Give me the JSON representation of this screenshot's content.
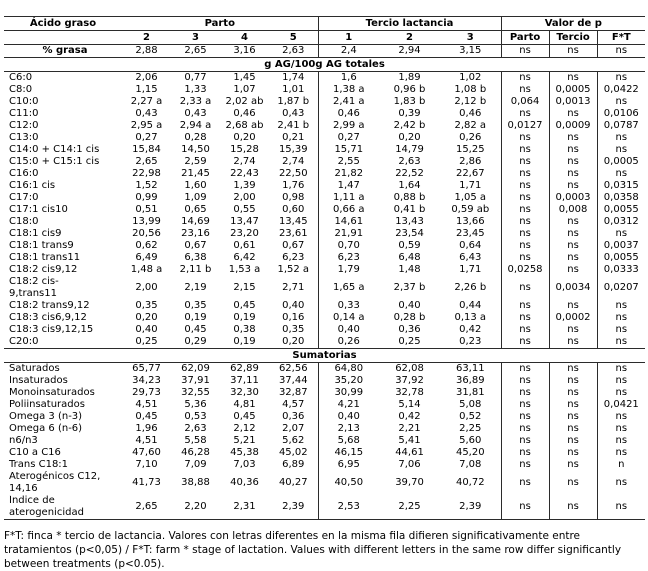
{
  "table": {
    "header": {
      "acid_label": "Ácido graso",
      "groups": [
        {
          "label": "Parto",
          "cols": [
            "2",
            "3",
            "4",
            "5"
          ]
        },
        {
          "label": "Tercio lactancia",
          "cols": [
            "1",
            "2",
            "3"
          ]
        },
        {
          "label": "Valor de p",
          "cols": [
            "Parto",
            "Tercio",
            "F*T"
          ]
        }
      ]
    },
    "rows": [
      {
        "label": "% grasa",
        "values": [
          "2,88",
          "2,65",
          "3,16",
          "2,63",
          "2,4",
          "2,94",
          "3,15",
          "ns",
          "ns",
          "ns"
        ]
      },
      {
        "section": "g AG/100g AG totales"
      },
      {
        "label": "C6:0",
        "values": [
          "2,06",
          "0,77",
          "1,45",
          "1,74",
          "1,6",
          "1,89",
          "1,02",
          "ns",
          "ns",
          "ns"
        ]
      },
      {
        "label": "C8:0",
        "values": [
          "1,15",
          "1,33",
          "1,07",
          "1,01",
          "1,38 a",
          "0,96 b",
          "1,08 b",
          "ns",
          "0,0005",
          "0,0422"
        ]
      },
      {
        "label": "C10:0",
        "values": [
          "2,27 a",
          "2,33 a",
          "2,02 ab",
          "1,87 b",
          "2,41 a",
          "1,83 b",
          "2,12 b",
          "0,064",
          "0,0013",
          "ns"
        ]
      },
      {
        "label": "C11:0",
        "values": [
          "0,43",
          "0,43",
          "0,46",
          "0,43",
          "0,46",
          "0,39",
          "0,46",
          "ns",
          "ns",
          "0,0106"
        ]
      },
      {
        "label": "C12:0",
        "values": [
          "2,95 a",
          "2,94 a",
          "2,68 ab",
          "2,41 b",
          "2,99 a",
          "2,42 b",
          "2,82 a",
          "0,0127",
          "0,0009",
          "0,0787"
        ]
      },
      {
        "label": "C13:0",
        "values": [
          "0,27",
          "0,28",
          "0,20",
          "0,21",
          "0,27",
          "0,20",
          "0,26",
          "ns",
          "ns",
          "ns"
        ]
      },
      {
        "label": "C14:0 + C14:1 cis",
        "values": [
          "15,84",
          "14,50",
          "15,28",
          "15,39",
          "15,71",
          "14,79",
          "15,25",
          "ns",
          "ns",
          "ns"
        ]
      },
      {
        "label": "C15:0 + C15:1 cis",
        "values": [
          "2,65",
          "2,59",
          "2,74",
          "2,74",
          "2,55",
          "2,63",
          "2,86",
          "ns",
          "ns",
          "0,0005"
        ]
      },
      {
        "label": "C16:0",
        "values": [
          "22,98",
          "21,45",
          "22,43",
          "22,50",
          "21,82",
          "22,52",
          "22,67",
          "ns",
          "ns",
          "ns"
        ]
      },
      {
        "label": "C16:1 cis",
        "values": [
          "1,52",
          "1,60",
          "1,39",
          "1,76",
          "1,47",
          "1,64",
          "1,71",
          "ns",
          "ns",
          "0,0315"
        ]
      },
      {
        "label": "C17:0",
        "values": [
          "0,99",
          "1,09",
          "2,00",
          "0,98",
          "1,11 a",
          "0,88 b",
          "1,05 a",
          "ns",
          "0,0003",
          "0,0358"
        ]
      },
      {
        "label": "C17:1 cis10",
        "values": [
          "0,51",
          "0,65",
          "0,55",
          "0,60",
          "0,66 a",
          "0,41 b",
          "0,59 ab",
          "ns",
          "0,008",
          "0,0055"
        ]
      },
      {
        "label": "C18:0",
        "values": [
          "13,99",
          "14,69",
          "13,47",
          "13,45",
          "14,61",
          "13,43",
          "13,66",
          "ns",
          "ns",
          "0,0312"
        ]
      },
      {
        "label": "C18:1 cis9",
        "values": [
          "20,56",
          "23,16",
          "23,20",
          "23,61",
          "21,91",
          "23,54",
          "23,45",
          "ns",
          "ns",
          "ns"
        ]
      },
      {
        "label": "C18:1 trans9",
        "values": [
          "0,62",
          "0,67",
          "0,61",
          "0,67",
          "0,70",
          "0,59",
          "0,64",
          "ns",
          "ns",
          "0,0037"
        ]
      },
      {
        "label": "C18:1 trans11",
        "values": [
          "6,49",
          "6,38",
          "6,42",
          "6,23",
          "6,23",
          "6,48",
          "6,43",
          "ns",
          "ns",
          "0,0055"
        ]
      },
      {
        "label": "C18:2 cis9,12",
        "values": [
          "1,48 a",
          "2,11 b",
          "1,53 a",
          "1,52 a",
          "1,79",
          "1,48",
          "1,71",
          "0,0258",
          "ns",
          "0,0333"
        ]
      },
      {
        "label": "C18:2 cis-\n9,trans11",
        "values": [
          "2,00",
          "2,19",
          "2,15",
          "2,71",
          "1,65 a",
          "2,37 b",
          "2,26 b",
          "ns",
          "0,0034",
          "0,0207"
        ]
      },
      {
        "label": "C18:2 trans9,12",
        "values": [
          "0,35",
          "0,35",
          "0,45",
          "0,40",
          "0,33",
          "0,40",
          "0,44",
          "ns",
          "ns",
          "ns"
        ]
      },
      {
        "label": "C18:3 cis6,9,12",
        "values": [
          "0,20",
          "0,19",
          "0,19",
          "0,16",
          "0,14 a",
          "0,28 b",
          "0,13 a",
          "ns",
          "0,0002",
          "ns"
        ]
      },
      {
        "label": "C18:3 cis9,12,15",
        "values": [
          "0,40",
          "0,45",
          "0,38",
          "0,35",
          "0,40",
          "0,36",
          "0,42",
          "ns",
          "ns",
          "ns"
        ]
      },
      {
        "label": "C20:0",
        "values": [
          "0,25",
          "0,29",
          "0,19",
          "0,20",
          "0,26",
          "0,25",
          "0,23",
          "ns",
          "ns",
          "ns"
        ]
      },
      {
        "section": "Sumatorias"
      },
      {
        "label": "Saturados",
        "values": [
          "65,77",
          "62,09",
          "62,89",
          "62,56",
          "64,80",
          "62,08",
          "63,11",
          "ns",
          "ns",
          "ns"
        ]
      },
      {
        "label": "Insaturados",
        "values": [
          "34,23",
          "37,91",
          "37,11",
          "37,44",
          "35,20",
          "37,92",
          "36,89",
          "ns",
          "ns",
          "ns"
        ]
      },
      {
        "label": "Monoinsaturados",
        "values": [
          "29,73",
          "32,55",
          "32,30",
          "32,87",
          "30,99",
          "32,78",
          "31,81",
          "ns",
          "ns",
          "ns"
        ]
      },
      {
        "label": "Poliinsaturados",
        "values": [
          "4,51",
          "5,36",
          "4,81",
          "4,57",
          "4,21",
          "5,14",
          "5,08",
          "ns",
          "ns",
          "0,0421"
        ]
      },
      {
        "label": "Omega 3 (n-3)",
        "values": [
          "0,45",
          "0,53",
          "0,45",
          "0,36",
          "0,40",
          "0,42",
          "0,52",
          "ns",
          "ns",
          "ns"
        ]
      },
      {
        "label": "Omega 6 (n-6)",
        "values": [
          "1,96",
          "2,63",
          "2,12",
          "2,07",
          "2,13",
          "2,21",
          "2,25",
          "ns",
          "ns",
          "ns"
        ]
      },
      {
        "label": "n6/n3",
        "values": [
          "4,51",
          "5,58",
          "5,21",
          "5,62",
          "5,68",
          "5,41",
          "5,60",
          "ns",
          "ns",
          "ns"
        ]
      },
      {
        "label": "C10 a C16",
        "values": [
          "47,60",
          "46,28",
          "45,38",
          "45,02",
          "46,15",
          "44,61",
          "45,20",
          "ns",
          "ns",
          "ns"
        ]
      },
      {
        "label": "Trans C18:1",
        "values": [
          "7,10",
          "7,09",
          "7,03",
          "6,89",
          "6,95",
          "7,06",
          "7,08",
          "ns",
          "ns",
          "n"
        ]
      },
      {
        "label": "Aterogénicos C12,\n14,16",
        "values": [
          "41,73",
          "38,88",
          "40,36",
          "40,27",
          "40,50",
          "39,70",
          "40,72",
          "ns",
          "ns",
          "ns"
        ]
      },
      {
        "label": "Índice de\naterogenicidad",
        "values": [
          "2,65",
          "2,20",
          "2,31",
          "2,39",
          "2,53",
          "2,25",
          "2,39",
          "ns",
          "ns",
          "ns"
        ]
      }
    ]
  },
  "footnote": "F*T: finca * tercio de lactancia. Valores con letras diferentes en la misma fila difieren significativamente entre tratamientos (p<0,05) / F*T: farm * stage of lactation. Values with different letters in the same row differ significantly between treatments (p<0.05)."
}
